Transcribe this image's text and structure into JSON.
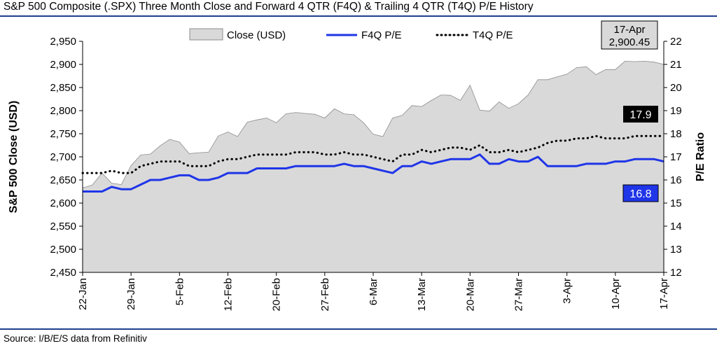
{
  "title": "S&P 500 Composite (.SPX) Three Month Close and Forward 4 QTR (F4Q) & Trailing 4 QTR (T4Q) P/E History",
  "source": "Source: I/B/E/S data from Refinitiv",
  "colors": {
    "rule": "#1f3f8f",
    "area_fill": "#d9d9d9",
    "area_edge": "#8c8c8c",
    "f4q": "#1f35e8",
    "t4q": "#000000"
  },
  "chart_data": {
    "type": "area",
    "title": "S&P 500 Composite (.SPX) Three Month Close and Forward 4 QTR (F4Q) & Trailing 4 QTR (T4Q) P/E History",
    "xlabel": "",
    "ylabel": "S&P 500 Close (USD)",
    "y2label": "P/E Ratio",
    "ylim": [
      2450,
      2950
    ],
    "y2lim": [
      12,
      22
    ],
    "yticks": [
      "2,450",
      "2,500",
      "2,550",
      "2,600",
      "2,650",
      "2,700",
      "2,750",
      "2,800",
      "2,850",
      "2,900",
      "2,950"
    ],
    "y2ticks": [
      "12",
      "13",
      "14",
      "15",
      "16",
      "17",
      "18",
      "19",
      "20",
      "21",
      "22"
    ],
    "xtick_labels": [
      "22-Jan",
      "29-Jan",
      "5-Feb",
      "12-Feb",
      "20-Feb",
      "27-Feb",
      "6-Mar",
      "13-Mar",
      "20-Mar",
      "27-Mar",
      "3-Apr",
      "10-Apr",
      "17-Apr"
    ],
    "xtick_positions": [
      0,
      5,
      10,
      15,
      20,
      25,
      30,
      35,
      40,
      45,
      50,
      55,
      60
    ],
    "legend": {
      "position": "top",
      "items": [
        "Close (USD)",
        "F4Q P/E",
        "T4Q P/E"
      ]
    },
    "grid": false,
    "series": [
      {
        "name": "Close (USD)",
        "axis": "left",
        "kind": "area",
        "values": [
          2633,
          2639,
          2665,
          2643,
          2640,
          2681,
          2704,
          2706,
          2724,
          2738,
          2732,
          2707,
          2709,
          2710,
          2745,
          2754,
          2744,
          2775,
          2780,
          2784,
          2774,
          2793,
          2796,
          2794,
          2792,
          2784,
          2804,
          2793,
          2791,
          2774,
          2749,
          2744,
          2784,
          2790,
          2811,
          2809,
          2822,
          2834,
          2833,
          2822,
          2855,
          2801,
          2799,
          2819,
          2805,
          2815,
          2834,
          2867,
          2867,
          2873,
          2879,
          2893,
          2895,
          2878,
          2889,
          2889,
          2907,
          2906,
          2907,
          2905,
          2900
        ]
      },
      {
        "name": "F4Q P/E",
        "axis": "right",
        "kind": "line",
        "values": [
          15.5,
          15.5,
          15.5,
          15.7,
          15.6,
          15.6,
          15.8,
          16.0,
          16.0,
          16.1,
          16.2,
          16.2,
          16.0,
          16.0,
          16.1,
          16.3,
          16.3,
          16.3,
          16.5,
          16.5,
          16.5,
          16.5,
          16.6,
          16.6,
          16.6,
          16.6,
          16.6,
          16.7,
          16.6,
          16.6,
          16.5,
          16.4,
          16.3,
          16.6,
          16.6,
          16.8,
          16.7,
          16.8,
          16.9,
          16.9,
          16.9,
          17.1,
          16.7,
          16.7,
          16.9,
          16.8,
          16.8,
          17.0,
          16.6,
          16.6,
          16.6,
          16.6,
          16.7,
          16.7,
          16.7,
          16.8,
          16.8,
          16.9,
          16.9,
          16.9,
          16.8
        ]
      },
      {
        "name": "T4Q P/E",
        "axis": "right",
        "kind": "line",
        "style": "dotted",
        "values": [
          16.3,
          16.3,
          16.3,
          16.4,
          16.3,
          16.3,
          16.6,
          16.7,
          16.8,
          16.8,
          16.8,
          16.6,
          16.6,
          16.6,
          16.8,
          16.9,
          16.9,
          17.0,
          17.1,
          17.1,
          17.1,
          17.1,
          17.2,
          17.2,
          17.2,
          17.1,
          17.1,
          17.2,
          17.1,
          17.1,
          17.0,
          16.9,
          16.8,
          17.1,
          17.1,
          17.3,
          17.2,
          17.3,
          17.4,
          17.4,
          17.3,
          17.5,
          17.2,
          17.2,
          17.3,
          17.2,
          17.3,
          17.4,
          17.6,
          17.7,
          17.7,
          17.8,
          17.8,
          17.9,
          17.8,
          17.8,
          17.8,
          17.9,
          17.9,
          17.9,
          17.9
        ]
      }
    ],
    "annotations": [
      {
        "kind": "callout",
        "date": "17-Apr",
        "value": "2,900.45"
      },
      {
        "kind": "series-label",
        "series": "T4Q P/E",
        "text": "17.9"
      },
      {
        "kind": "series-label",
        "series": "F4Q P/E",
        "text": "16.8"
      }
    ]
  }
}
